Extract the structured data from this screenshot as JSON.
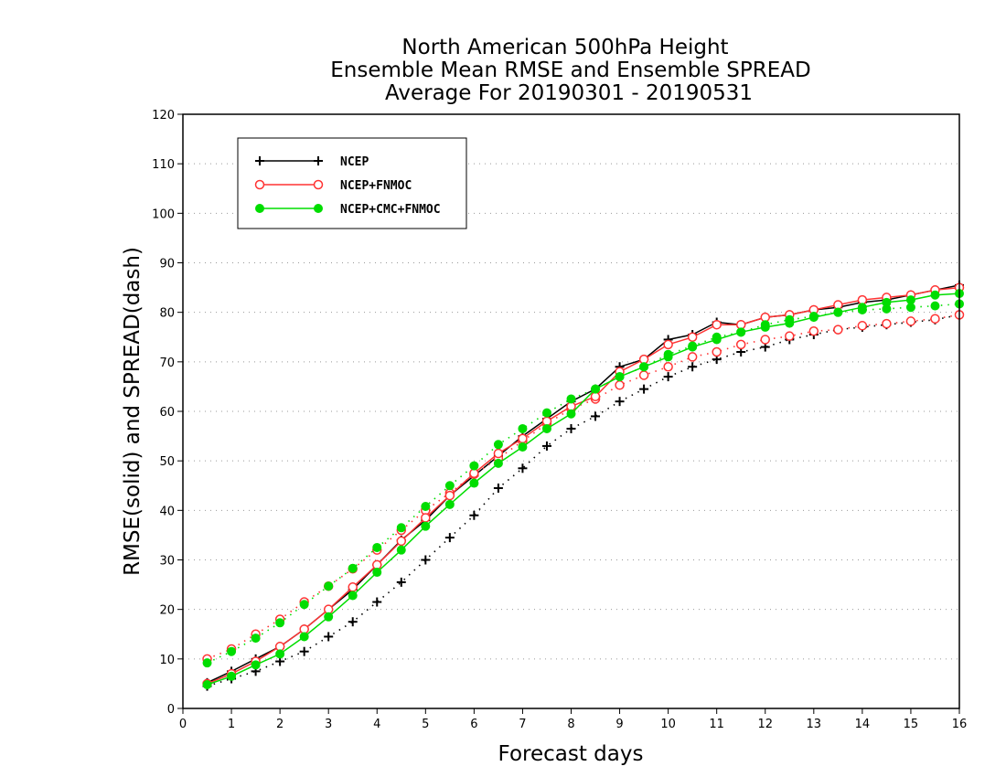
{
  "chart_data": {
    "type": "line",
    "title": [
      "North American 500hPa Height",
      "Ensemble Mean RMSE and Ensemble SPREAD",
      "Average For 20190301 - 20190531"
    ],
    "xlabel": "Forecast days",
    "ylabel": "RMSE(solid) and SPREAD(dash)",
    "xlim": [
      0,
      16
    ],
    "ylim": [
      0,
      120
    ],
    "xticks": [
      "0",
      "1",
      "2",
      "3",
      "4",
      "5",
      "6",
      "7",
      "8",
      "9",
      "10",
      "11",
      "12",
      "13",
      "14",
      "15",
      "16"
    ],
    "yticks": [
      "0",
      "10",
      "20",
      "30",
      "40",
      "50",
      "60",
      "70",
      "80",
      "90",
      "100",
      "110",
      "120"
    ],
    "grid": true,
    "legend_position": "top-left",
    "x": [
      0.5,
      1,
      1.5,
      2,
      2.5,
      3,
      3.5,
      4,
      4.5,
      5,
      5.5,
      6,
      6.5,
      7,
      7.5,
      8,
      8.5,
      9,
      9.5,
      10,
      10.5,
      11,
      11.5,
      12,
      12.5,
      13,
      13.5,
      14,
      14.5,
      15,
      15.5,
      16
    ],
    "series": [
      {
        "name": "NCEP",
        "color": "#000000",
        "marker": "plus",
        "rmse": [
          5.2,
          7.5,
          10.0,
          12.5,
          16.0,
          20.0,
          24.0,
          29.0,
          34.0,
          38.0,
          43.0,
          47.0,
          51.0,
          55.0,
          58.5,
          62.0,
          64.5,
          69.0,
          70.5,
          74.5,
          75.5,
          78.0,
          77.5,
          79.0,
          79.5,
          80.5,
          81.0,
          82.0,
          82.5,
          83.5,
          84.5,
          85.5
        ],
        "spread": [
          4.5,
          6.0,
          7.5,
          9.5,
          11.5,
          14.5,
          17.5,
          21.5,
          25.5,
          30.0,
          34.5,
          39.0,
          44.5,
          48.5,
          53.0,
          56.5,
          59.0,
          62.0,
          64.5,
          67.0,
          69.0,
          70.5,
          72.0,
          73.0,
          74.5,
          75.5,
          76.5,
          77.0,
          77.5,
          78.0,
          78.5,
          79.5
        ]
      },
      {
        "name": "NCEP+FNMOC",
        "color": "#ff3333",
        "marker": "open-circle",
        "rmse": [
          5.0,
          7.0,
          9.5,
          12.5,
          16.0,
          20.0,
          24.5,
          29.0,
          33.8,
          38.5,
          43.0,
          47.5,
          51.5,
          54.5,
          58.0,
          61.0,
          63.0,
          68.0,
          70.5,
          73.5,
          75.0,
          77.5,
          77.5,
          79.0,
          79.5,
          80.5,
          81.5,
          82.5,
          83.0,
          83.5,
          84.5,
          85.0
        ],
        "spread": [
          10.0,
          12.0,
          15.0,
          18.0,
          21.5,
          24.7,
          28.2,
          32.0,
          36.0,
          40.0,
          43.5,
          47.3,
          50.5,
          54.0,
          57.5,
          60.5,
          62.5,
          65.3,
          67.3,
          69.0,
          71.0,
          72.0,
          73.5,
          74.5,
          75.2,
          76.2,
          76.5,
          77.3,
          77.7,
          78.2,
          78.7,
          79.5
        ]
      },
      {
        "name": "NCEP+CMC+FNMOC",
        "color": "#00dd00",
        "marker": "filled-circle",
        "rmse": [
          4.8,
          6.5,
          8.8,
          11.0,
          14.5,
          18.5,
          22.8,
          27.5,
          32.0,
          36.8,
          41.2,
          45.5,
          49.5,
          52.8,
          56.5,
          59.5,
          64.5,
          67.0,
          69.0,
          71.0,
          73.0,
          74.5,
          76.0,
          77.0,
          77.8,
          79.0,
          80.0,
          81.0,
          82.0,
          82.5,
          83.5,
          83.8
        ],
        "spread": [
          9.2,
          11.5,
          14.2,
          17.3,
          21.0,
          24.7,
          28.3,
          32.5,
          36.5,
          40.8,
          45.0,
          49.0,
          53.3,
          56.5,
          59.7,
          62.5,
          64.5,
          67.0,
          69.0,
          71.5,
          73.2,
          75.0,
          76.0,
          77.5,
          78.5,
          79.2,
          80.0,
          80.5,
          80.7,
          81.0,
          81.3,
          81.7
        ]
      }
    ]
  }
}
